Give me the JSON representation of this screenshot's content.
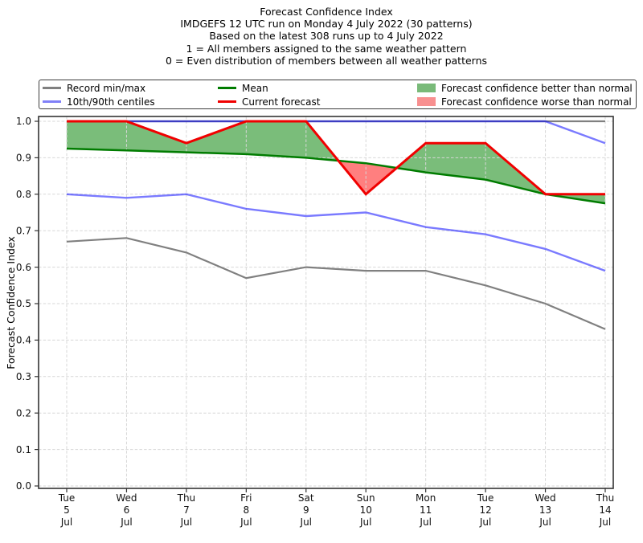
{
  "title": {
    "lines": [
      "Forecast Confidence Index",
      "IMDGEFS 12 UTC run on Monday 4 July 2022 (30 patterns)",
      "Based on the latest 308 runs up to 4 July 2022",
      "1 = All members assigned to the same weather pattern",
      "0 = Even distribution of members between all weather patterns"
    ]
  },
  "legend": {
    "record_minmax": "Record min/max",
    "centiles": "10th/90th centiles",
    "mean": "Mean",
    "current": "Current forecast",
    "better": "Forecast confidence better than normal",
    "worse": "Forecast confidence worse than normal"
  },
  "axes": {
    "ylabel": "Forecast Confidence Index",
    "yticks": [
      0.0,
      0.1,
      0.2,
      0.3,
      0.4,
      0.5,
      0.6,
      0.7,
      0.8,
      0.9,
      1.0
    ]
  },
  "colors": {
    "record": "#808080",
    "centile_line": "#0000ff",
    "centile_swatch": "#8080f8",
    "mean": "#007c00",
    "current": "#f00000",
    "fill_better": "#008000",
    "fill_worse": "#ff0000",
    "fill_better_swatch": "#79ba79",
    "fill_worse_swatch": "#f89090",
    "grid": "#d7d7d7",
    "spine": "#333333"
  },
  "chart_data": {
    "type": "line",
    "title": "Forecast Confidence Index",
    "ylabel": "Forecast Confidence Index",
    "ylim": [
      0.0,
      1.0
    ],
    "yticks": [
      0.0,
      0.1,
      0.2,
      0.3,
      0.4,
      0.5,
      0.6,
      0.7,
      0.8,
      0.9,
      1.0
    ],
    "categories": [
      "Tue 5 Jul",
      "Wed 6 Jul",
      "Thu 7 Jul",
      "Fri 8 Jul",
      "Sat 9 Jul",
      "Sun 10 Jul",
      "Mon 11 Jul",
      "Tue 12 Jul",
      "Wed 13 Jul",
      "Thu 14 Jul"
    ],
    "series": [
      {
        "name": "Record max",
        "role": "record-max",
        "color": "#808080",
        "values": [
          1.0,
          1.0,
          1.0,
          1.0,
          1.0,
          1.0,
          1.0,
          1.0,
          1.0,
          1.0
        ]
      },
      {
        "name": "Record min",
        "role": "record-min",
        "color": "#808080",
        "values": [
          0.67,
          0.68,
          0.64,
          0.57,
          0.6,
          0.59,
          0.59,
          0.55,
          0.5,
          0.43
        ]
      },
      {
        "name": "90th centile",
        "role": "p90",
        "color": "#0000ff",
        "values": [
          1.0,
          1.0,
          1.0,
          1.0,
          1.0,
          1.0,
          1.0,
          1.0,
          1.0,
          0.94
        ]
      },
      {
        "name": "10th centile",
        "role": "p10",
        "color": "#0000ff",
        "values": [
          0.8,
          0.79,
          0.8,
          0.76,
          0.74,
          0.75,
          0.71,
          0.69,
          0.65,
          0.59
        ]
      },
      {
        "name": "Mean",
        "role": "mean",
        "color": "#007c00",
        "values": [
          0.925,
          0.92,
          0.915,
          0.91,
          0.9,
          0.885,
          0.86,
          0.84,
          0.8,
          0.775
        ]
      },
      {
        "name": "Current forecast",
        "role": "current",
        "color": "#f00000",
        "values": [
          1.0,
          1.0,
          0.94,
          1.0,
          1.0,
          0.8,
          0.94,
          0.94,
          0.8,
          0.8
        ]
      }
    ],
    "fill_between": {
      "upper": "current",
      "lower": "mean",
      "better_color": "#008000",
      "worse_color": "#ff0000",
      "better_label": "Forecast confidence better than normal",
      "worse_label": "Forecast confidence worse than normal"
    },
    "grid": {
      "style": "dashed",
      "axes": "both"
    },
    "legend_position": "top"
  }
}
